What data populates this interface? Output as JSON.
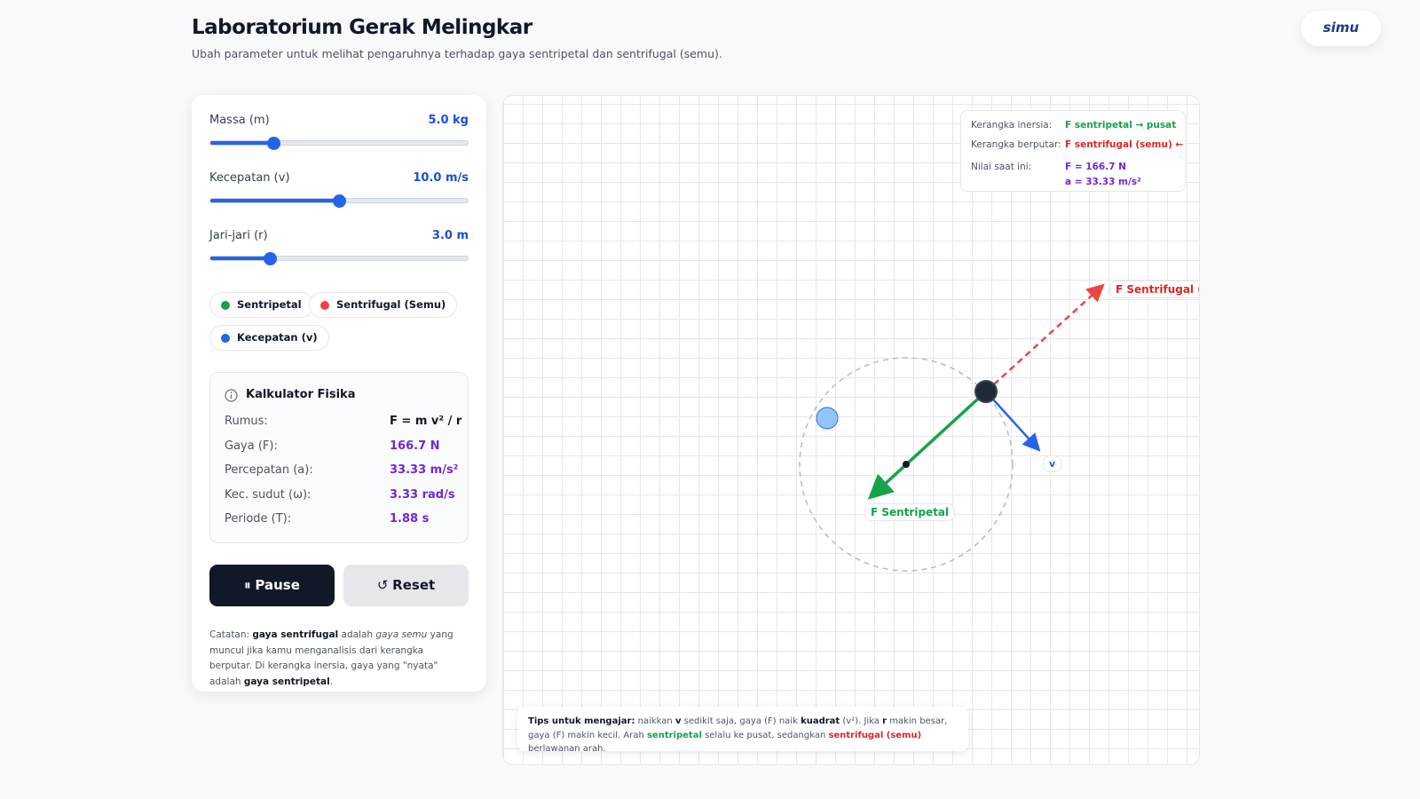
{
  "header": {
    "title": "Laboratorium Gerak Melingkar",
    "subtitle": "Ubah parameter untuk melihat pengaruhnya terhadap gaya sentripetal dan sentrifugal (semu).",
    "logo": "simu"
  },
  "controls": [
    {
      "label": "Massa (m)",
      "value": "5.0 kg"
    },
    {
      "label": "Kecepatan (v)",
      "value": "10.0 m/s"
    },
    {
      "label": "Jari-jari (r)",
      "value": "3.0 m"
    }
  ],
  "legend": [
    "Sentripetal",
    "Sentrifugal (Semu)",
    "Kecepatan (v)"
  ],
  "calculator": {
    "title": "Kalkulator Fisika",
    "rows": [
      [
        "Rumus:",
        "F = m v² / r"
      ],
      [
        "Gaya (F):",
        "166.7 N"
      ],
      [
        "Percepatan (a):",
        "33.33 m/s²"
      ],
      [
        "Kec. sudut (ω):",
        "3.33 rad/s"
      ],
      [
        "Periode (T):",
        "1.88 s"
      ]
    ]
  },
  "buttons": [
    "Pause",
    "Reset"
  ],
  "note": [
    "Catatan: ",
    "gaya sentrifugal",
    " adalah ",
    "gaya semu",
    " yang muncul jika kamu menganalisis dari kerangka berputar. Di kerangka inersia, gaya yang \"nyata\" adalah ",
    "gaya sentripetal",
    "."
  ],
  "info": {
    "rows": [
      [
        "Kerangka inersia:",
        "F sentripetal → pusat"
      ],
      [
        "Kerangka berputar:",
        "F sentrifugal (semu) ←"
      ]
    ],
    "current_label": "Nilai saat ini:",
    "current": [
      "F = 166.7 N",
      "a = 33.33 m/s²"
    ]
  },
  "labels": {
    "centrifugal": "F Sentrifugal (Semu)",
    "centripetal": "F Sentripetal",
    "velocity": "v"
  },
  "tips": [
    "Tips untuk mengajar:",
    " naikkan ",
    "v",
    " sedikit saja, gaya (F) naik ",
    "kuadrat",
    " (v²). Jika ",
    "r",
    " makin besar, gaya (F) makin kecil. Arah ",
    "sentripetal",
    " selalu ke pusat, sedangkan ",
    "sentrifugal (semu)",
    " berlawanan arah."
  ]
}
